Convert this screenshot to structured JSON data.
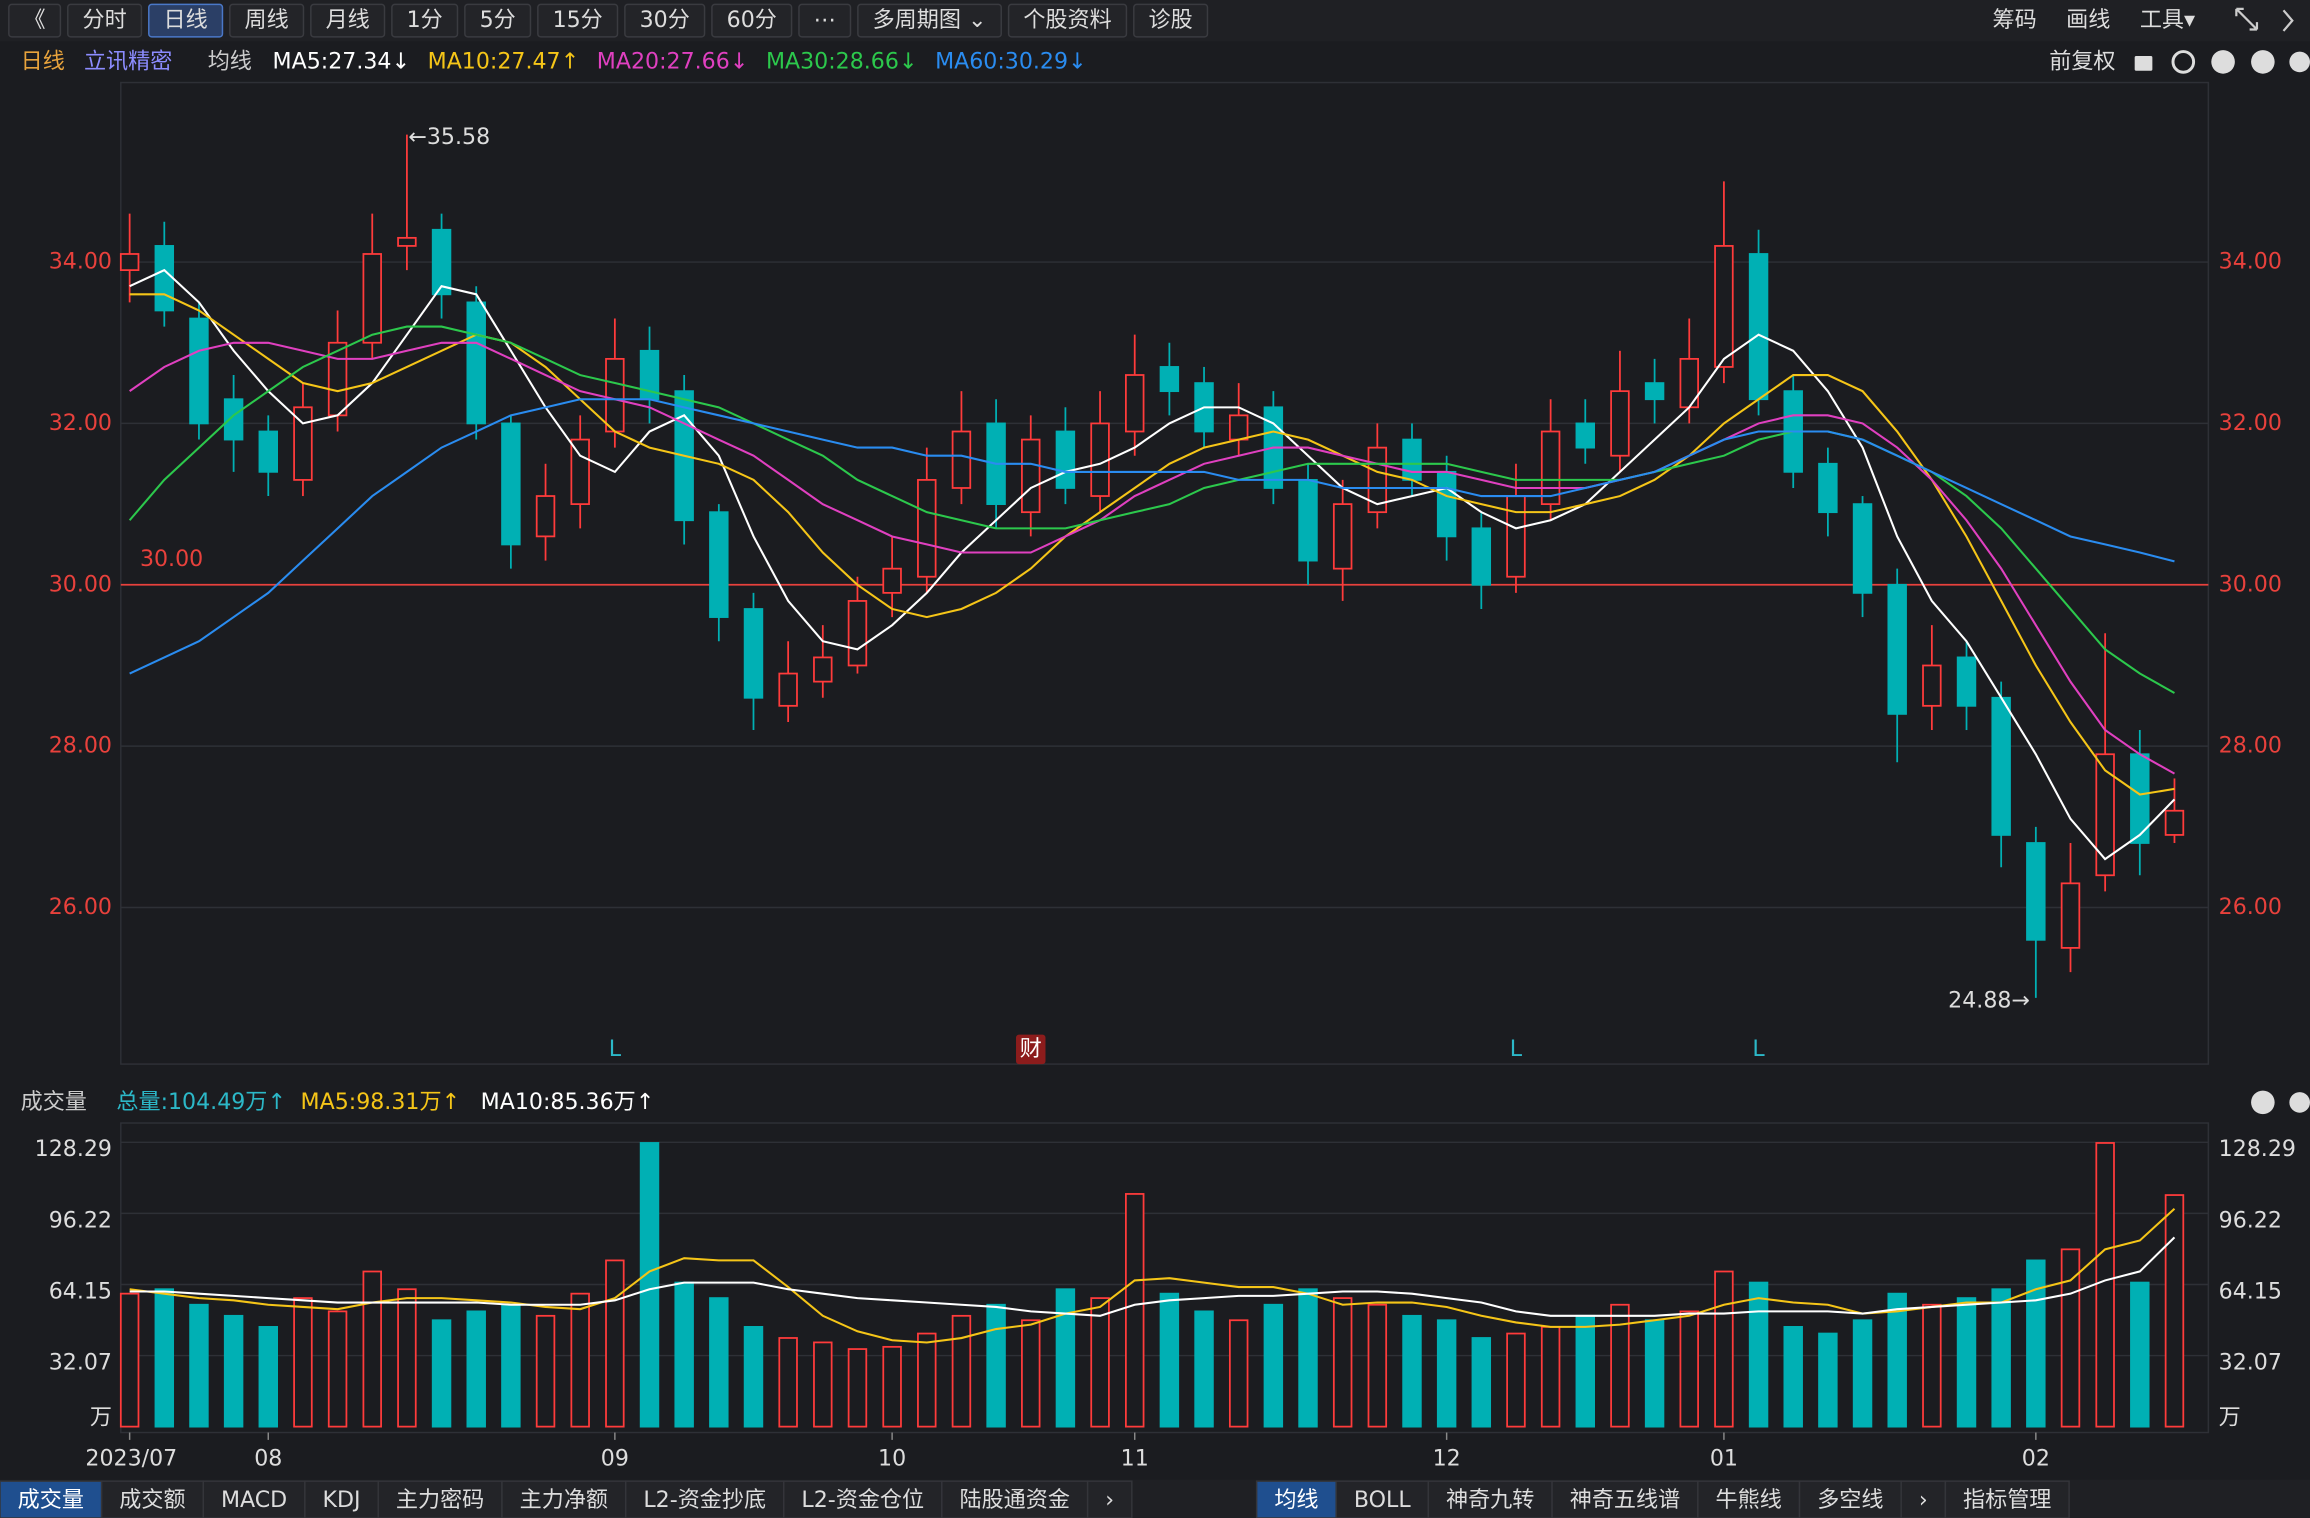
{
  "toolbar": {
    "left": [
      "《",
      "分时",
      "日线",
      "周线",
      "月线",
      "1分",
      "5分",
      "15分",
      "30分",
      "60分",
      "⋯",
      "多周期图 ⌄",
      "个股资料",
      "诊股"
    ],
    "active": "日线",
    "right": [
      "筹码",
      "画线",
      "工具▾"
    ]
  },
  "header": {
    "period": "日线",
    "stock": "立讯精密",
    "ma_title": "均线",
    "adjust": "前复权"
  },
  "volume_header": {
    "title": "成交量",
    "total_label": "总量:104.49万↑"
  },
  "tabs": {
    "left": [
      "成交量",
      "成交额",
      "MACD",
      "KDJ",
      "主力密码",
      "主力净额",
      "L2-资金抄底",
      "L2-资金仓位",
      "陆股通资金",
      "›"
    ],
    "right": [
      "均线",
      "BOLL",
      "神奇九转",
      "神奇五线谱",
      "牛熊线",
      "多空线",
      "›",
      "指标管理"
    ],
    "active": [
      "成交量",
      "均线"
    ]
  },
  "chart_data": [
    {
      "type": "candlestick",
      "ylim": [
        24.06,
        35.75
      ],
      "yticks": [
        {
          "value": 26,
          "label": "26.00"
        },
        {
          "value": 28,
          "label": "28.00"
        },
        {
          "value": 30,
          "label": "30.00"
        },
        {
          "value": 32,
          "label": "32.00"
        },
        {
          "value": 34,
          "label": "34.00"
        }
      ],
      "grid": true,
      "up_color": "#ff3b3b",
      "down_color": "#00b0b4",
      "ref_line": {
        "value": 30,
        "label": "30.00",
        "color": "#e8413c"
      },
      "max_label": "←35.58",
      "min_label": "24.88→",
      "open": [
        33.9,
        34.2,
        33.3,
        32.3,
        31.9,
        31.3,
        32.1,
        33.0,
        34.2,
        34.4,
        33.5,
        32.0,
        30.6,
        31.0,
        31.9,
        32.9,
        32.4,
        30.9,
        29.7,
        28.5,
        28.8,
        29.0,
        29.9,
        30.1,
        31.2,
        32.0,
        30.9,
        31.9,
        31.1,
        31.9,
        32.7,
        32.5,
        31.8,
        32.2,
        31.3,
        30.2,
        30.9,
        31.8,
        31.4,
        30.7,
        30.1,
        31.0,
        32.0,
        31.6,
        32.5,
        32.2,
        32.7,
        34.1,
        32.4,
        31.5,
        31.0,
        30.0,
        28.5,
        29.1,
        28.6,
        26.8,
        25.5,
        26.4,
        27.9,
        26.9
      ],
      "high": [
        34.6,
        34.5,
        33.5,
        32.6,
        32.1,
        32.5,
        33.4,
        34.6,
        35.58,
        34.6,
        33.7,
        32.1,
        31.5,
        32.1,
        33.3,
        33.2,
        32.6,
        31.0,
        29.9,
        29.3,
        29.5,
        30.1,
        30.6,
        31.7,
        32.4,
        32.3,
        32.1,
        32.2,
        32.4,
        33.1,
        33.0,
        32.7,
        32.5,
        32.4,
        31.5,
        31.3,
        32.0,
        32.0,
        31.6,
        30.9,
        31.5,
        32.3,
        32.3,
        32.9,
        32.8,
        33.3,
        35.0,
        34.4,
        32.6,
        31.7,
        31.1,
        30.2,
        29.5,
        29.3,
        28.8,
        27.0,
        26.8,
        29.4,
        28.2,
        27.6
      ],
      "low": [
        33.5,
        33.2,
        31.8,
        31.4,
        31.1,
        31.1,
        31.9,
        32.8,
        33.9,
        33.3,
        31.8,
        30.2,
        30.3,
        30.7,
        31.7,
        32.0,
        30.5,
        29.3,
        28.2,
        28.3,
        28.6,
        28.9,
        29.6,
        29.9,
        31.0,
        30.7,
        30.6,
        31.0,
        30.9,
        31.6,
        32.1,
        31.7,
        31.6,
        31.0,
        30.0,
        29.8,
        30.7,
        31.1,
        30.3,
        29.7,
        29.9,
        30.8,
        31.5,
        31.4,
        32.0,
        32.0,
        32.5,
        32.1,
        31.2,
        30.6,
        29.6,
        27.8,
        28.2,
        28.2,
        26.5,
        24.88,
        25.2,
        26.2,
        26.4,
        26.8
      ],
      "close": [
        34.1,
        33.4,
        32.0,
        31.8,
        31.4,
        32.2,
        33.0,
        34.1,
        34.3,
        33.6,
        32.0,
        30.5,
        31.1,
        31.8,
        32.8,
        32.3,
        30.8,
        29.6,
        28.6,
        28.9,
        29.1,
        29.8,
        30.2,
        31.3,
        31.9,
        31.0,
        31.8,
        31.2,
        32.0,
        32.6,
        32.4,
        31.9,
        32.1,
        31.2,
        30.3,
        31.0,
        31.7,
        31.3,
        30.6,
        30.0,
        31.1,
        31.9,
        31.7,
        32.4,
        32.3,
        32.8,
        34.2,
        32.3,
        31.4,
        30.9,
        29.9,
        28.4,
        29.0,
        28.5,
        26.9,
        25.6,
        26.3,
        27.9,
        26.8,
        27.2
      ],
      "event_labels": [
        null,
        null,
        null,
        null,
        null,
        null,
        null,
        null,
        null,
        null,
        null,
        null,
        null,
        null,
        "L",
        null,
        null,
        null,
        null,
        null,
        null,
        null,
        null,
        null,
        null,
        null,
        "财",
        null,
        null,
        null,
        null,
        null,
        null,
        null,
        null,
        null,
        null,
        null,
        null,
        null,
        "L",
        null,
        null,
        null,
        null,
        null,
        null,
        "L",
        null,
        null,
        null,
        null,
        null,
        null,
        null,
        null,
        null,
        null,
        null,
        null
      ],
      "series": [
        {
          "name": "MA5:27.34↓",
          "color": "#ffffff",
          "values": [
            33.7,
            33.9,
            33.5,
            32.9,
            32.4,
            32.0,
            32.1,
            32.5,
            33.1,
            33.7,
            33.6,
            32.9,
            32.2,
            31.6,
            31.4,
            31.9,
            32.1,
            31.6,
            30.6,
            29.8,
            29.3,
            29.2,
            29.5,
            29.9,
            30.4,
            30.8,
            31.2,
            31.4,
            31.5,
            31.7,
            32.0,
            32.2,
            32.2,
            32.0,
            31.6,
            31.2,
            31.0,
            31.1,
            31.2,
            30.9,
            30.7,
            30.8,
            31.0,
            31.4,
            31.8,
            32.2,
            32.8,
            33.1,
            32.9,
            32.4,
            31.7,
            30.6,
            29.8,
            29.3,
            28.6,
            27.9,
            27.1,
            26.6,
            26.9,
            27.34
          ]
        },
        {
          "name": "MA10:27.47↑",
          "color": "#f5c518",
          "values": [
            33.6,
            33.6,
            33.4,
            33.1,
            32.8,
            32.5,
            32.4,
            32.5,
            32.7,
            32.9,
            33.1,
            33.0,
            32.7,
            32.3,
            31.9,
            31.7,
            31.6,
            31.5,
            31.3,
            30.9,
            30.4,
            30.0,
            29.7,
            29.6,
            29.7,
            29.9,
            30.2,
            30.6,
            30.9,
            31.2,
            31.5,
            31.7,
            31.8,
            31.9,
            31.8,
            31.6,
            31.4,
            31.3,
            31.1,
            31.0,
            30.9,
            30.9,
            31.0,
            31.1,
            31.3,
            31.6,
            32.0,
            32.3,
            32.6,
            32.6,
            32.4,
            31.9,
            31.3,
            30.6,
            29.8,
            29.0,
            28.3,
            27.7,
            27.4,
            27.47
          ]
        },
        {
          "name": "MA20:27.66↓",
          "color": "#e040c0",
          "values": [
            32.4,
            32.7,
            32.9,
            33.0,
            33.0,
            32.9,
            32.8,
            32.8,
            32.9,
            33.0,
            33.0,
            32.8,
            32.6,
            32.4,
            32.3,
            32.2,
            32.0,
            31.8,
            31.6,
            31.3,
            31.0,
            30.8,
            30.6,
            30.5,
            30.4,
            30.4,
            30.4,
            30.6,
            30.8,
            31.1,
            31.3,
            31.5,
            31.6,
            31.7,
            31.7,
            31.6,
            31.5,
            31.4,
            31.4,
            31.3,
            31.2,
            31.2,
            31.2,
            31.3,
            31.4,
            31.6,
            31.8,
            32.0,
            32.1,
            32.1,
            32.0,
            31.7,
            31.3,
            30.8,
            30.2,
            29.5,
            28.8,
            28.2,
            27.9,
            27.66
          ]
        },
        {
          "name": "MA30:28.66↓",
          "color": "#2cc84c",
          "values": [
            30.8,
            31.3,
            31.7,
            32.1,
            32.4,
            32.7,
            32.9,
            33.1,
            33.2,
            33.2,
            33.1,
            33.0,
            32.8,
            32.6,
            32.5,
            32.4,
            32.3,
            32.2,
            32.0,
            31.8,
            31.6,
            31.3,
            31.1,
            30.9,
            30.8,
            30.7,
            30.7,
            30.7,
            30.8,
            30.9,
            31.0,
            31.2,
            31.3,
            31.4,
            31.5,
            31.5,
            31.5,
            31.5,
            31.5,
            31.4,
            31.3,
            31.3,
            31.3,
            31.3,
            31.4,
            31.5,
            31.6,
            31.8,
            31.9,
            31.9,
            31.8,
            31.6,
            31.4,
            31.1,
            30.7,
            30.2,
            29.7,
            29.2,
            28.9,
            28.66
          ]
        },
        {
          "name": "MA60:30.29↓",
          "color": "#2a8cf0",
          "values": [
            28.9,
            29.1,
            29.3,
            29.6,
            29.9,
            30.3,
            30.7,
            31.1,
            31.4,
            31.7,
            31.9,
            32.1,
            32.2,
            32.3,
            32.3,
            32.3,
            32.2,
            32.1,
            32.0,
            31.9,
            31.8,
            31.7,
            31.7,
            31.6,
            31.6,
            31.5,
            31.5,
            31.4,
            31.4,
            31.4,
            31.4,
            31.4,
            31.3,
            31.3,
            31.3,
            31.2,
            31.2,
            31.2,
            31.2,
            31.1,
            31.1,
            31.1,
            31.2,
            31.3,
            31.4,
            31.6,
            31.8,
            31.9,
            31.9,
            31.9,
            31.8,
            31.6,
            31.4,
            31.2,
            31.0,
            30.8,
            30.6,
            30.5,
            30.4,
            30.29
          ]
        }
      ]
    },
    {
      "type": "bar",
      "ylim": [
        0,
        135
      ],
      "yticks": [
        32.07,
        64.15,
        96.22,
        128.29
      ],
      "unit": "万",
      "categories": [
        "2023/07",
        null,
        null,
        null,
        "08",
        null,
        null,
        null,
        null,
        null,
        null,
        null,
        null,
        null,
        "09",
        null,
        null,
        null,
        null,
        null,
        null,
        null,
        "10",
        null,
        null,
        null,
        null,
        null,
        null,
        "11",
        null,
        null,
        null,
        null,
        null,
        null,
        null,
        null,
        "12",
        null,
        null,
        null,
        null,
        null,
        null,
        null,
        "01",
        null,
        null,
        null,
        null,
        null,
        null,
        null,
        null,
        "02",
        null,
        null,
        null,
        null
      ],
      "values": [
        60,
        62,
        55,
        50,
        45,
        58,
        52,
        70,
        62,
        48,
        52,
        55,
        50,
        60,
        75,
        128,
        65,
        58,
        45,
        40,
        38,
        35,
        36,
        42,
        50,
        55,
        48,
        62,
        58,
        105,
        60,
        52,
        48,
        55,
        62,
        58,
        55,
        50,
        48,
        40,
        42,
        45,
        50,
        55,
        48,
        52,
        70,
        65,
        45,
        42,
        48,
        60,
        55,
        58,
        62,
        75,
        80,
        128,
        65,
        104.49
      ],
      "series": [
        {
          "name": "MA5:98.31万↑",
          "color": "#f5c518",
          "values": [
            62,
            60,
            58,
            57,
            55,
            54,
            53,
            56,
            58,
            58,
            57,
            56,
            54,
            53,
            58,
            70,
            76,
            75,
            75,
            63,
            50,
            43,
            39,
            38,
            40,
            44,
            46,
            51,
            54,
            66,
            67,
            65,
            63,
            63,
            60,
            55,
            56,
            56,
            54,
            50,
            47,
            45,
            45,
            46,
            48,
            50,
            55,
            58,
            56,
            55,
            51,
            52,
            54,
            56,
            56,
            62,
            66,
            80,
            84,
            98.31
          ]
        },
        {
          "name": "MA10:85.36万↑",
          "color": "#ffffff",
          "values": [
            61,
            61,
            60,
            59,
            58,
            57,
            56,
            56,
            56,
            56,
            56,
            55,
            55,
            55,
            57,
            62,
            65,
            65,
            65,
            62,
            60,
            58,
            57,
            56,
            55,
            54,
            52,
            51,
            50,
            55,
            57,
            58,
            59,
            59,
            60,
            61,
            61,
            60,
            58,
            56,
            52,
            50,
            50,
            50,
            50,
            51,
            51,
            52,
            52,
            52,
            51,
            53,
            54,
            55,
            56,
            57,
            60,
            66,
            70,
            85.36
          ]
        }
      ]
    }
  ]
}
